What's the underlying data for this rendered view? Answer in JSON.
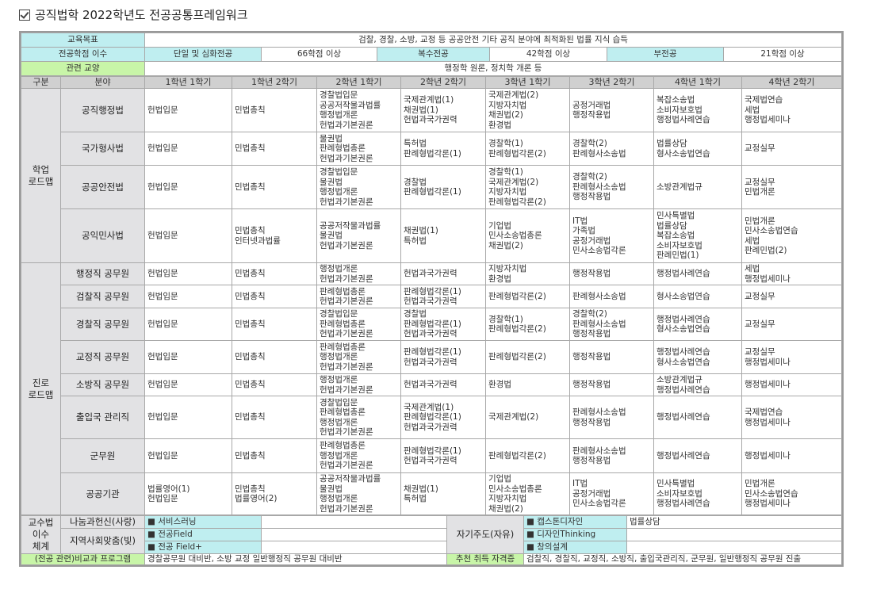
{
  "title": "공직법학 2022학년도 전공공통프레임워크",
  "goal": {
    "label": "교육목표",
    "value": "검찰, 경찰, 소방, 교정 등 공공안전 기타 공직 분야에 최적화된 법률 지식 습득"
  },
  "credits": {
    "label": "전공학점 이수",
    "items": [
      [
        "단일 및 심화전공",
        "66학점 이상"
      ],
      [
        "복수전공",
        "42학점 이상"
      ],
      [
        "부전공",
        "21학점 이상"
      ]
    ]
  },
  "liberal": {
    "label": "관련 교양",
    "value": "행정학 원론, 정치학 개론 등"
  },
  "headers": [
    "구분",
    "분야",
    "1학년 1학기",
    "1학년 2학기",
    "2학년 1학기",
    "2학년 2학기",
    "3학년 1학기",
    "3학년 2학기",
    "4학년 1학기",
    "4학년 2학기"
  ],
  "groups": [
    {
      "name": "학업\n로드맵",
      "rows": [
        {
          "field": "공직행정법",
          "cells": [
            [
              "헌법입문"
            ],
            [
              "민법총칙"
            ],
            [
              "경찰법입문",
              "공공저작물과법률",
              "행정법개론",
              "헌법과기본권론"
            ],
            [
              "국제관계법(1)",
              "채권법(1)",
              "헌법과국가권력"
            ],
            [
              "국제관계법(2)",
              "지방자치법",
              "채권법(2)",
              "환경법"
            ],
            [
              "공정거래법",
              "행정작용법"
            ],
            [
              "복잡소송법",
              "소비자보호법",
              "행정법사례연습"
            ],
            [
              "국제법연습",
              "세법",
              "행정법세미나"
            ]
          ]
        },
        {
          "field": "국가형사법",
          "cells": [
            [
              "헌법입문"
            ],
            [
              "민법총칙"
            ],
            [
              "물권법",
              "판례형법총론",
              "헌법과기본권론"
            ],
            [
              "특허법",
              "판례형법각론(1)"
            ],
            [
              "경찰학(1)",
              "판례형법각론(2)"
            ],
            [
              "경찰학(2)",
              "판례형사소송법"
            ],
            [
              "법률상담",
              "형사소송법연습"
            ],
            [
              "교정실무"
            ]
          ]
        },
        {
          "field": "공공안전법",
          "cells": [
            [
              "헌법입문"
            ],
            [
              "민법총칙"
            ],
            [
              "경찰법입문",
              "물권법",
              "행정법개론",
              "헌법과기본권론"
            ],
            [
              "경찰법",
              "판례형법각론(1)"
            ],
            [
              "경찰학(1)",
              "국제관계법(2)",
              "지방자치법",
              "판례형법각론(2)"
            ],
            [
              "경찰학(2)",
              "판례형사소송법",
              "행정작용법"
            ],
            [
              "소방관계법규"
            ],
            [
              "교정실무",
              "민법개론"
            ]
          ]
        },
        {
          "field": "공익민사법",
          "cells": [
            [
              "헌법입문"
            ],
            [
              "민법총칙",
              "인터넷과법률"
            ],
            [
              "공공저작물과법률",
              "물권법",
              "헌법과기본권론"
            ],
            [
              "채권법(1)",
              "특허법"
            ],
            [
              "기업법",
              "민사소송법총론",
              "채권법(2)"
            ],
            [
              "IT법",
              "가족법",
              "공정거래법",
              "민사소송법각론"
            ],
            [
              "민사특별법",
              "법률상담",
              "복잡소송법",
              "소비자보호법",
              "판례민법(1)"
            ],
            [
              "민법개론",
              "민사소송법연습",
              "세법",
              "판례민법(2)"
            ]
          ]
        }
      ]
    },
    {
      "name": "진로\n로드맵",
      "rows": [
        {
          "field": "행정직 공무원",
          "cells": [
            [
              "헌법입문"
            ],
            [
              "민법총칙"
            ],
            [
              "행정법개론",
              "헌법과기본권론"
            ],
            [
              "헌법과국가권력"
            ],
            [
              "지방자치법",
              "환경법"
            ],
            [
              "행정작용법"
            ],
            [
              "행정법사례연습"
            ],
            [
              "세법",
              "행정법세미나"
            ]
          ]
        },
        {
          "field": "검찰직 공무원",
          "cells": [
            [
              "헌법입문"
            ],
            [
              "민법총칙"
            ],
            [
              "판례형법총론",
              "헌법과기본권론"
            ],
            [
              "판례형법각론(1)",
              "헌법과국가권력"
            ],
            [
              "판례형법각론(2)"
            ],
            [
              "판례형사소송법"
            ],
            [
              "형사소송법연습"
            ],
            [
              "교정실무"
            ]
          ]
        },
        {
          "field": "경찰직 공무원",
          "cells": [
            [
              "헌법입문"
            ],
            [
              "민법총칙"
            ],
            [
              "경찰법입문",
              "판례형법총론",
              "헌법과기본권론"
            ],
            [
              "경찰법",
              "판례형법각론(1)",
              "헌법과국가권력"
            ],
            [
              "경찰학(1)",
              "판례형법각론(2)"
            ],
            [
              "경찰학(2)",
              "판례형사소송법",
              "행정작용법"
            ],
            [
              "행정법사례연습",
              "형사소송법연습"
            ],
            [
              "교정실무"
            ]
          ]
        },
        {
          "field": "교정직 공무원",
          "cells": [
            [
              "헌법입문"
            ],
            [
              "민법총칙"
            ],
            [
              "판례형법총론",
              "행정법개론",
              "헌법과기본권론"
            ],
            [
              "판례형법각론(1)",
              "헌법과국가권력"
            ],
            [
              "판례형법각론(2)"
            ],
            [
              "행정작용법"
            ],
            [
              "행정법사례연습",
              "형사소송법연습"
            ],
            [
              "교정실무",
              "행정법세미나"
            ]
          ]
        },
        {
          "field": "소방직 공무원",
          "cells": [
            [
              "헌법입문"
            ],
            [
              "민법총칙"
            ],
            [
              "행정법개론",
              "헌법과기본권론"
            ],
            [
              "헌법과국가권력"
            ],
            [
              "환경법"
            ],
            [
              "행정작용법"
            ],
            [
              "소방관계법규",
              "행정법사례연습"
            ],
            [
              "행정법세미나"
            ]
          ]
        },
        {
          "field": "출입국 관리직",
          "cells": [
            [
              "헌법입문"
            ],
            [
              "민법총칙"
            ],
            [
              "경찰법입문",
              "판례형법총론",
              "행정법개론",
              "헌법과기본권론"
            ],
            [
              "국제관계법(1)",
              "판례형법각론(1)",
              "헌법과국가권력"
            ],
            [
              "국제관계법(2)"
            ],
            [
              "판례형사소송법",
              "행정작용법"
            ],
            [
              "행정법사례연습"
            ],
            [
              "국제법연습",
              "행정법세미나"
            ]
          ]
        },
        {
          "field": "군무원",
          "cells": [
            [
              "헌법입문"
            ],
            [
              "민법총칙"
            ],
            [
              "판례형법총론",
              "행정법개론",
              "헌법과기본권론"
            ],
            [
              "판례형법각론(1)",
              "헌법과국가권력"
            ],
            [
              "판례형법각론(2)"
            ],
            [
              "판례형사소송법",
              "행정작용법"
            ],
            [
              "행정법사례연습"
            ],
            [
              "행정법세미나"
            ]
          ]
        },
        {
          "field": "공공기관",
          "cells": [
            [
              "법률영어(1)",
              "헌법입문"
            ],
            [
              "민법총칙",
              "법률영어(2)"
            ],
            [
              "공공저작물과법률",
              "물권법",
              "행정법개론",
              "헌법과기본권론"
            ],
            [
              "채권법(1)",
              "특허법"
            ],
            [
              "기업법",
              "민사소송법총론",
              "지방자치법",
              "채권법(2)"
            ],
            [
              "IT법",
              "공정거래법",
              "민사소송법각론"
            ],
            [
              "민사특별법",
              "소비자보호법",
              "행정법사례연습"
            ],
            [
              "민법개론",
              "민사소송법연습",
              "행정법세미나"
            ]
          ]
        }
      ]
    }
  ],
  "pedagogy": {
    "label": "교수법\n이수\n체계",
    "love": "나눔과헌신(사랑)",
    "light": "지역사회맞춤(빛)",
    "left_items": [
      "■ 서비스러닝",
      "■ 전공Field",
      "■ 전공 Field+"
    ],
    "self": "자기주도(자유)",
    "right_items": [
      "■ 캡스톤디자인",
      "■ 디자인Thinking",
      "■ 창의설계"
    ],
    "right_values": [
      "법률상담",
      "",
      ""
    ]
  },
  "extra": {
    "label": "(전공 관련)비교과 프로그램",
    "value": "경찰공무원 대비반, 소방 교정 일반행정직 공무원 대비반",
    "cert_label": "추천 취득 자격증",
    "cert_value": "검찰직, 경찰직, 교정직, 소방직, 출입국관리직, 군무원, 일반행정직 공무원 진출"
  },
  "colors": {
    "cyan": "#bfeef0",
    "green": "#c8f5a8",
    "header": "#d0d0d0",
    "label": "#e2e2e4"
  }
}
